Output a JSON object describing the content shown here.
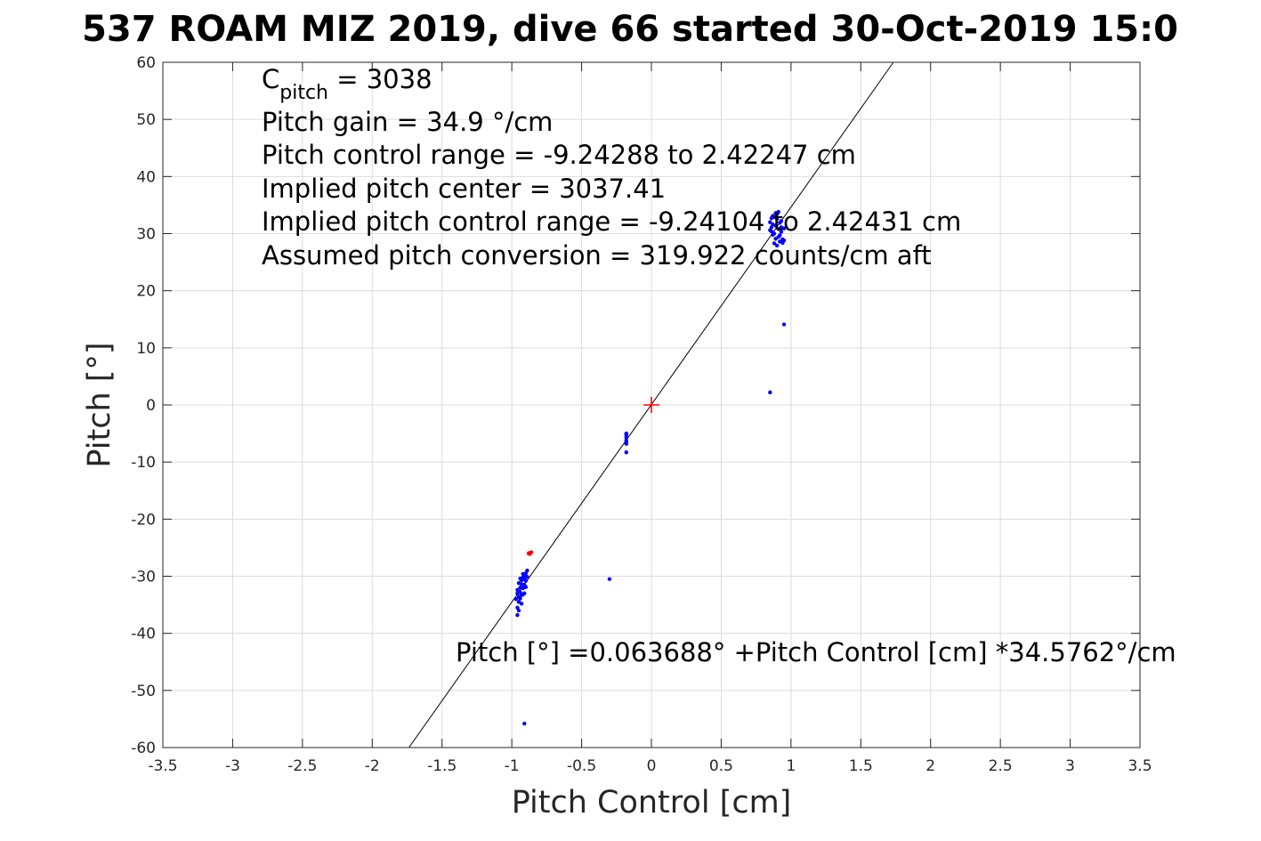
{
  "chart_data": {
    "type": "scatter",
    "title": "537 ROAM MIZ 2019, dive 66 started 30-Oct-2019 15:0",
    "xlabel": "Pitch Control [cm]",
    "ylabel": "Pitch [°]",
    "xlim": [
      -3.5,
      3.5
    ],
    "ylim": [
      -60,
      60
    ],
    "xticks": [
      -3.5,
      -3,
      -2.5,
      -2,
      -1.5,
      -1,
      -0.5,
      0,
      0.5,
      1,
      1.5,
      2,
      2.5,
      3,
      3.5
    ],
    "yticks": [
      -60,
      -50,
      -40,
      -30,
      -20,
      -10,
      0,
      10,
      20,
      30,
      40,
      50,
      60
    ],
    "xtick_labels": [
      "-3.5",
      "-3",
      "-2.5",
      "-2",
      "-1.5",
      "-1",
      "-0.5",
      "0",
      "0.5",
      "1",
      "1.5",
      "2",
      "2.5",
      "3",
      "3.5"
    ],
    "ytick_labels": [
      "-60",
      "-50",
      "-40",
      "-30",
      "-20",
      "-10",
      "0",
      "10",
      "20",
      "30",
      "40",
      "50",
      "60"
    ],
    "grid": true,
    "annotations": [
      {
        "prefix": "C",
        "sub": "pitch",
        "suffix": " = 3038"
      },
      {
        "text": "Pitch gain = 34.9 °/cm"
      },
      {
        "text": "Pitch control range = -9.24288 to 2.42247 cm"
      },
      {
        "text": "Implied pitch center = 3037.41"
      },
      {
        "text": "Implied pitch control range = -9.24104 to 2.42431 cm"
      },
      {
        "text": "Assumed pitch conversion = 319.922 counts/cm aft"
      }
    ],
    "fit_equation": "Pitch [°] =0.063688° +Pitch Control [cm] *34.5762°/cm",
    "fit_line": {
      "intercept": 0.063688,
      "slope": 34.5762,
      "color": "#000000"
    },
    "center_marker": {
      "x": 0,
      "y": 0,
      "color": "#ff0000"
    },
    "series": [
      {
        "color": "#0000ff",
        "points": [
          [
            -0.96,
            -36.8
          ],
          [
            -0.96,
            -35.5
          ],
          [
            -0.95,
            -34.5
          ],
          [
            -0.95,
            -33.6
          ],
          [
            -0.94,
            -32.8
          ],
          [
            -0.94,
            -32.0
          ],
          [
            -0.93,
            -31.4
          ],
          [
            -0.93,
            -30.7
          ],
          [
            -0.92,
            -30.2
          ],
          [
            -0.92,
            -29.6
          ],
          [
            -0.91,
            -30.5
          ],
          [
            -0.91,
            -31.5
          ],
          [
            -0.9,
            -29.5
          ],
          [
            -0.9,
            -30.8
          ],
          [
            -0.89,
            -29.0
          ],
          [
            -0.95,
            -31.2
          ],
          [
            -0.94,
            -33.9
          ],
          [
            -0.93,
            -34.8
          ],
          [
            -0.92,
            -33.2
          ],
          [
            -0.96,
            -33.0
          ],
          [
            -0.92,
            -32.1
          ],
          [
            -0.91,
            -33.0
          ],
          [
            -0.93,
            -33.3
          ],
          [
            -0.94,
            -30.4
          ],
          [
            -0.9,
            -31.9
          ],
          [
            -0.97,
            -34.0
          ],
          [
            -0.95,
            -36.0
          ],
          [
            -0.91,
            -29.9
          ],
          [
            -0.89,
            -30.1
          ],
          [
            -0.96,
            -32.4
          ],
          [
            -0.91,
            -55.8
          ],
          [
            -0.3,
            -30.5
          ],
          [
            -0.18,
            -8.3
          ],
          [
            -0.18,
            -6.8
          ],
          [
            -0.18,
            -6.2
          ],
          [
            -0.18,
            -5.7
          ],
          [
            -0.18,
            -5.3
          ],
          [
            -0.18,
            -5.0
          ],
          [
            -0.18,
            -6.5
          ],
          [
            0.85,
            2.2
          ],
          [
            0.95,
            14.1
          ],
          [
            0.85,
            32.0
          ],
          [
            0.86,
            31.1
          ],
          [
            0.86,
            30.4
          ],
          [
            0.87,
            29.8
          ],
          [
            0.87,
            31.6
          ],
          [
            0.88,
            32.9
          ],
          [
            0.88,
            30.0
          ],
          [
            0.89,
            31.4
          ],
          [
            0.89,
            29.1
          ],
          [
            0.9,
            32.6
          ],
          [
            0.9,
            33.4
          ],
          [
            0.91,
            30.8
          ],
          [
            0.91,
            29.4
          ],
          [
            0.92,
            31.9
          ],
          [
            0.92,
            28.6
          ],
          [
            0.93,
            30.3
          ],
          [
            0.93,
            32.2
          ],
          [
            0.94,
            29.0
          ],
          [
            0.94,
            28.4
          ],
          [
            0.88,
            28.3
          ],
          [
            0.9,
            27.9
          ],
          [
            0.87,
            33.1
          ],
          [
            0.86,
            32.7
          ],
          [
            0.92,
            29.7
          ],
          [
            0.89,
            33.6
          ],
          [
            0.91,
            33.8
          ],
          [
            0.93,
            31.1
          ],
          [
            0.85,
            30.6
          ],
          [
            0.95,
            30.9
          ],
          [
            0.95,
            28.8
          ]
        ]
      },
      {
        "color": "#ff0000",
        "points": [
          [
            -0.87,
            -25.9
          ],
          [
            -0.86,
            -25.8
          ],
          [
            -0.88,
            -26.0
          ],
          [
            -0.87,
            -26.1
          ]
        ]
      }
    ]
  }
}
